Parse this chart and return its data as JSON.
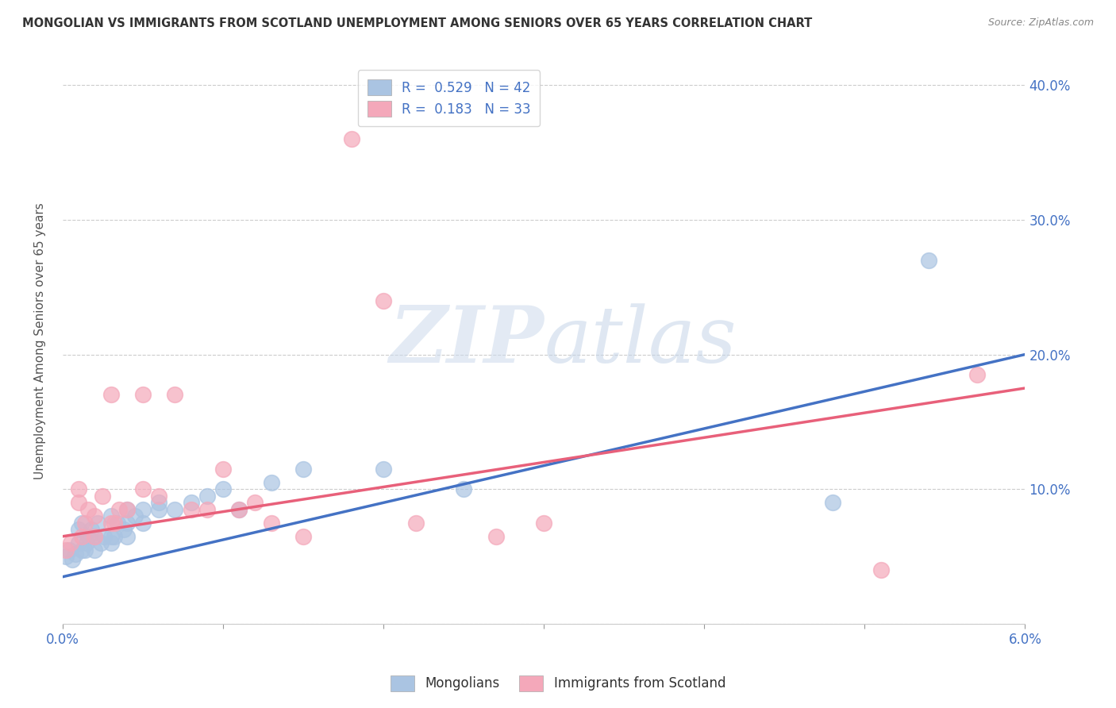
{
  "title": "MONGOLIAN VS IMMIGRANTS FROM SCOTLAND UNEMPLOYMENT AMONG SENIORS OVER 65 YEARS CORRELATION CHART",
  "source": "Source: ZipAtlas.com",
  "ylabel": "Unemployment Among Seniors over 65 years",
  "xlim": [
    0.0,
    0.06
  ],
  "ylim": [
    0.0,
    0.42
  ],
  "x_ticks": [
    0.0,
    0.01,
    0.02,
    0.03,
    0.04,
    0.05,
    0.06
  ],
  "x_tick_labels": [
    "0.0%",
    "",
    "",
    "",
    "",
    "",
    "6.0%"
  ],
  "y_ticks": [
    0.0,
    0.1,
    0.2,
    0.3,
    0.4
  ],
  "y_tick_labels": [
    "",
    "10.0%",
    "20.0%",
    "30.0%",
    "40.0%"
  ],
  "mongolians_R": 0.529,
  "mongolians_N": 42,
  "scotland_R": 0.183,
  "scotland_N": 33,
  "mongolians_color": "#aac4e2",
  "scotland_color": "#f4a8ba",
  "mongolians_line_color": "#4472c4",
  "scotland_line_color": "#e8607a",
  "legend_color": "#4472c4",
  "mongolians_x": [
    0.0002,
    0.0004,
    0.0006,
    0.0008,
    0.001,
    0.001,
    0.0012,
    0.0012,
    0.0014,
    0.0015,
    0.0016,
    0.0018,
    0.002,
    0.002,
    0.0022,
    0.0024,
    0.0026,
    0.003,
    0.003,
    0.003,
    0.0032,
    0.0034,
    0.0038,
    0.004,
    0.004,
    0.004,
    0.0045,
    0.005,
    0.005,
    0.006,
    0.006,
    0.007,
    0.008,
    0.009,
    0.01,
    0.011,
    0.013,
    0.015,
    0.02,
    0.025,
    0.048,
    0.054
  ],
  "mongolians_y": [
    0.05,
    0.055,
    0.048,
    0.052,
    0.06,
    0.07,
    0.055,
    0.075,
    0.055,
    0.06,
    0.065,
    0.07,
    0.055,
    0.065,
    0.075,
    0.06,
    0.065,
    0.06,
    0.065,
    0.08,
    0.065,
    0.075,
    0.07,
    0.065,
    0.075,
    0.085,
    0.08,
    0.075,
    0.085,
    0.085,
    0.09,
    0.085,
    0.09,
    0.095,
    0.1,
    0.085,
    0.105,
    0.115,
    0.115,
    0.1,
    0.09,
    0.27
  ],
  "scotland_x": [
    0.0002,
    0.0005,
    0.001,
    0.001,
    0.0012,
    0.0014,
    0.0016,
    0.002,
    0.002,
    0.0025,
    0.003,
    0.003,
    0.0032,
    0.0035,
    0.004,
    0.005,
    0.005,
    0.006,
    0.007,
    0.008,
    0.009,
    0.01,
    0.011,
    0.012,
    0.013,
    0.015,
    0.018,
    0.02,
    0.022,
    0.027,
    0.03,
    0.051,
    0.057
  ],
  "scotland_y": [
    0.055,
    0.06,
    0.09,
    0.1,
    0.065,
    0.075,
    0.085,
    0.065,
    0.08,
    0.095,
    0.075,
    0.17,
    0.075,
    0.085,
    0.085,
    0.1,
    0.17,
    0.095,
    0.17,
    0.085,
    0.085,
    0.115,
    0.085,
    0.09,
    0.075,
    0.065,
    0.36,
    0.24,
    0.075,
    0.065,
    0.075,
    0.04,
    0.185
  ],
  "blue_line_x0": 0.0,
  "blue_line_y0": 0.035,
  "blue_line_x1": 0.06,
  "blue_line_y1": 0.2,
  "pink_line_x0": 0.0,
  "pink_line_y0": 0.065,
  "pink_line_x1": 0.06,
  "pink_line_y1": 0.175,
  "watermark_zip_color": "#c8d8ec",
  "watermark_atlas_color": "#c8d8ec",
  "background_color": "#ffffff",
  "grid_color": "#cccccc"
}
